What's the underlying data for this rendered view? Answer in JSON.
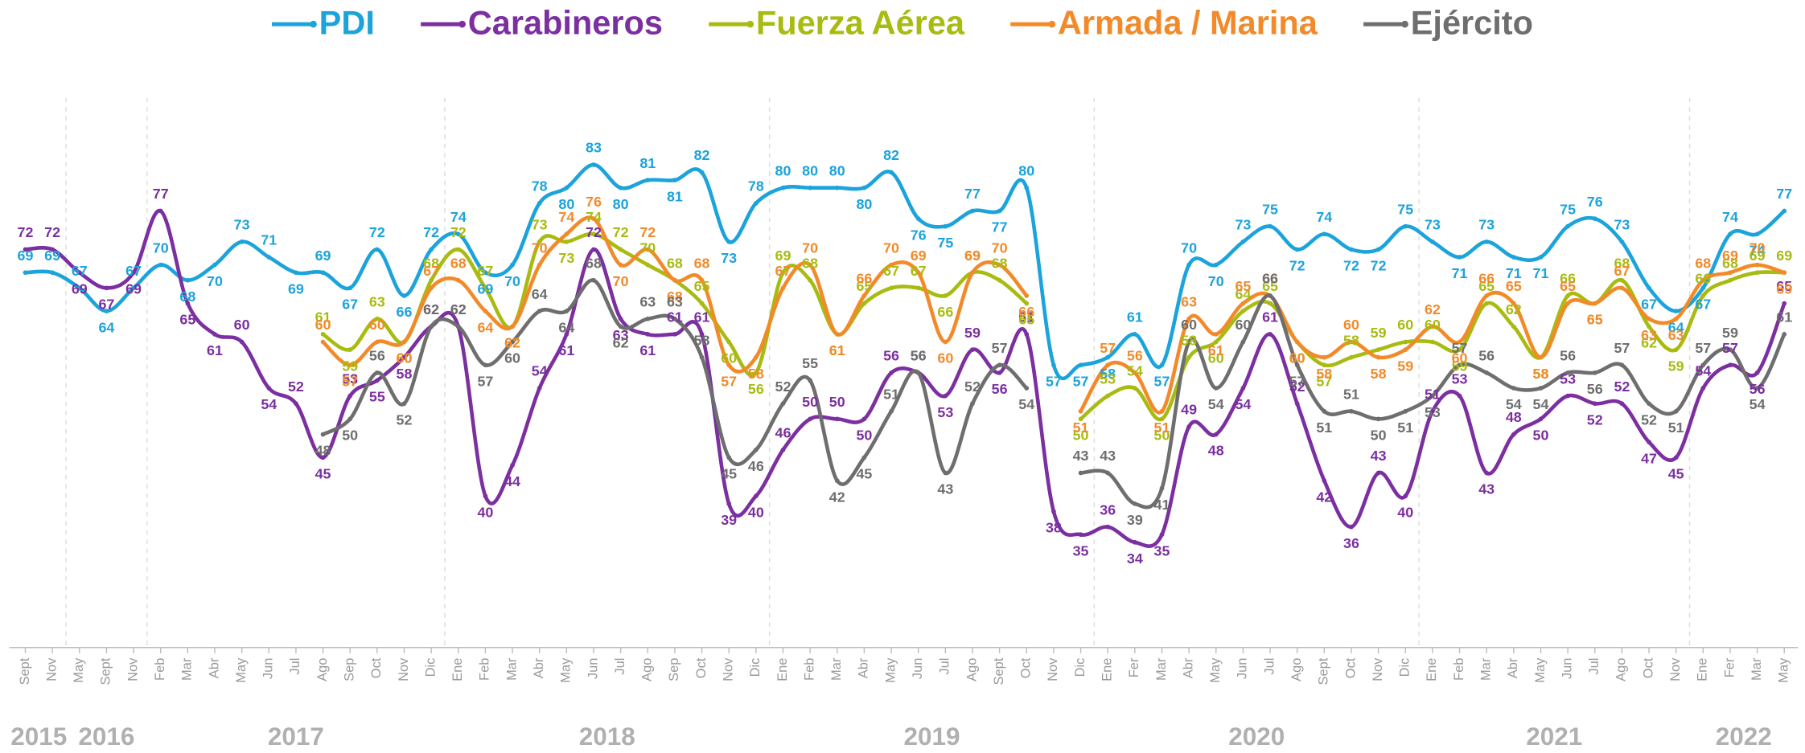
{
  "chart_data": {
    "type": "line",
    "categories": [
      "Sept",
      "Nov",
      "May",
      "Sept",
      "Nov",
      "Feb",
      "Mar",
      "Abr",
      "May",
      "Jun",
      "Jul",
      "Ago",
      "Sep",
      "Oct",
      "Nov",
      "Dic",
      "Ene",
      "Feb",
      "Mar",
      "Abr",
      "May",
      "Jun",
      "Jul",
      "Ago",
      "Sep",
      "Oct",
      "Nov",
      "Dic",
      "Ene",
      "Feb",
      "Mar",
      "Abr",
      "May",
      "Jun",
      "Jul",
      "Ago",
      "Sept",
      "Oct",
      "Nov",
      "Dic",
      "Ene",
      "Fer",
      "Mar",
      "Abr",
      "May",
      "Jun",
      "Jul",
      "Ago",
      "Sept",
      "Oct",
      "Nov",
      "Dic",
      "Ene",
      "Feb",
      "Mar",
      "Abr",
      "May",
      "Jun",
      "Jul",
      "Ago",
      "Oct",
      "Nov",
      "Ene",
      "Fer",
      "Mar",
      "May"
    ],
    "years": [
      "2015",
      "2016",
      "2017",
      "2018",
      "2019",
      "2020",
      "2021",
      "2022"
    ],
    "ylim": [
      20,
      90
    ],
    "series": [
      {
        "name": "PDI",
        "color": "#1ba3dc",
        "values": [
          69,
          69,
          67,
          64,
          67,
          70,
          68,
          70,
          73,
          71,
          69,
          69,
          67,
          72,
          66,
          72,
          74,
          69,
          70,
          78,
          80,
          83,
          80,
          81,
          81,
          82,
          73,
          78,
          80,
          80,
          80,
          80,
          82,
          76,
          75,
          77,
          77,
          80,
          57,
          57,
          58,
          61,
          57,
          70,
          70,
          73,
          75,
          72,
          74,
          72,
          72,
          75,
          73,
          71,
          73,
          71,
          71,
          75,
          76,
          73,
          67,
          64,
          67,
          74,
          74,
          77
        ]
      },
      {
        "name": "Carabineros",
        "color": "#7b2fa0",
        "values": [
          72,
          72,
          69,
          67,
          69,
          77,
          65,
          61,
          60,
          54,
          52,
          45,
          53,
          55,
          58,
          62,
          62,
          40,
          44,
          54,
          61,
          72,
          63,
          61,
          61,
          61,
          39,
          40,
          46,
          50,
          50,
          50,
          56,
          56,
          53,
          59,
          56,
          61,
          38,
          35,
          36,
          34,
          35,
          49,
          48,
          54,
          61,
          52,
          42,
          36,
          43,
          40,
          51,
          53,
          43,
          48,
          50,
          53,
          52,
          52,
          47,
          45,
          54,
          57,
          56,
          65
        ]
      },
      {
        "name": "Fuerza Aérea",
        "color": "#a8bb10",
        "values": [
          null,
          null,
          null,
          null,
          null,
          null,
          null,
          null,
          null,
          null,
          null,
          61,
          59,
          63,
          60,
          68,
          72,
          67,
          62,
          73,
          73,
          74,
          72,
          70,
          68,
          65,
          60,
          56,
          69,
          68,
          61,
          65,
          67,
          67,
          66,
          69,
          68,
          65,
          null,
          50,
          53,
          54,
          50,
          58,
          60,
          64,
          65,
          60,
          57,
          58,
          59,
          60,
          60,
          59,
          65,
          62,
          58,
          66,
          65,
          68,
          62,
          59,
          66,
          68,
          69,
          69
        ]
      },
      {
        "name": "Armada / Marina",
        "color": "#f28a2a",
        "values": [
          null,
          null,
          null,
          null,
          null,
          null,
          null,
          null,
          null,
          null,
          null,
          60,
          57,
          60,
          60,
          67,
          68,
          64,
          62,
          70,
          74,
          76,
          70,
          72,
          68,
          68,
          57,
          58,
          67,
          70,
          61,
          66,
          70,
          69,
          60,
          69,
          70,
          66,
          null,
          51,
          57,
          56,
          51,
          63,
          61,
          65,
          66,
          60,
          58,
          60,
          58,
          59,
          62,
          60,
          66,
          65,
          58,
          65,
          65,
          67,
          63,
          63,
          68,
          69,
          70,
          69
        ]
      },
      {
        "name": "Ejército",
        "color": "#6e6e6e",
        "values": [
          null,
          null,
          null,
          null,
          null,
          null,
          null,
          null,
          null,
          null,
          null,
          48,
          50,
          56,
          52,
          62,
          62,
          57,
          60,
          64,
          64,
          68,
          62,
          63,
          63,
          58,
          45,
          46,
          52,
          55,
          42,
          45,
          51,
          56,
          43,
          52,
          57,
          54,
          null,
          43,
          43,
          39,
          41,
          60,
          54,
          60,
          66,
          57,
          51,
          51,
          50,
          51,
          53,
          57,
          56,
          54,
          54,
          56,
          56,
          57,
          52,
          51,
          57,
          59,
          54,
          61
        ]
      }
    ]
  }
}
